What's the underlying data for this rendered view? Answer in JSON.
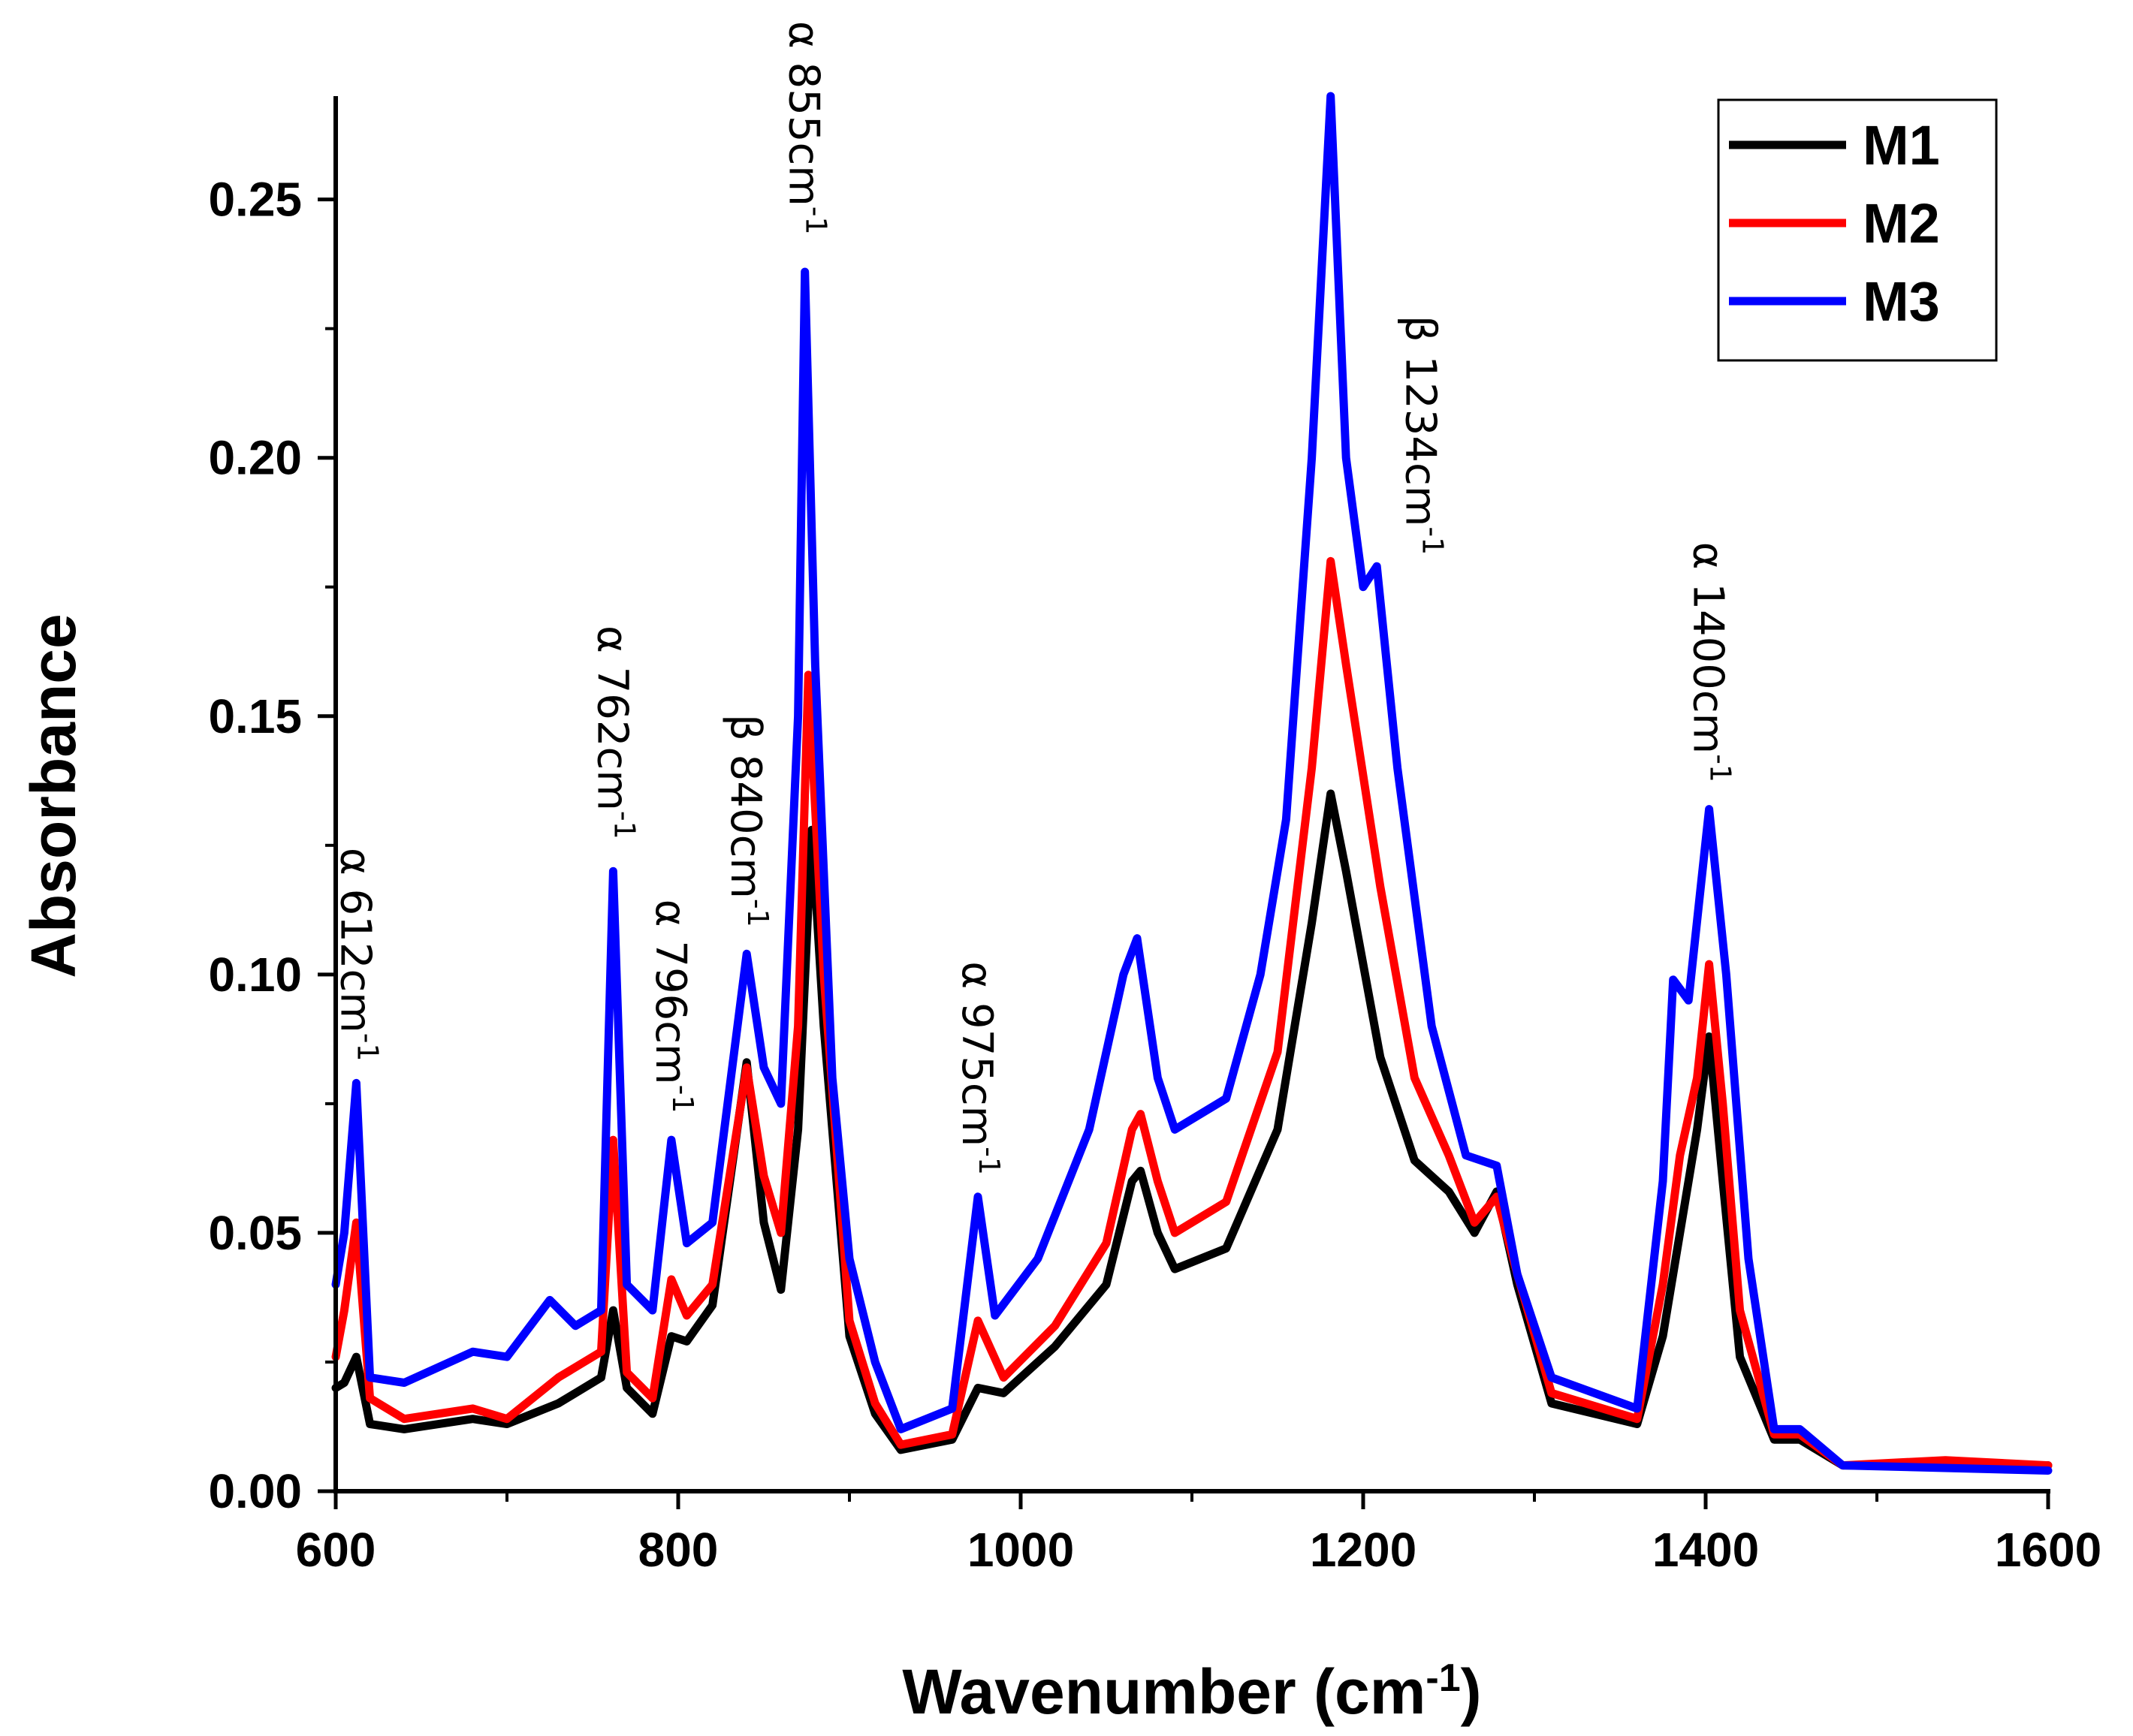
{
  "chart_data": {
    "type": "line",
    "xlabel": "Wavenumber (cm",
    "xlabel_sup": "-1",
    "xlabel_close": ")",
    "ylabel": "Absorbance",
    "xlim": [
      600,
      1600
    ],
    "ylim": [
      0,
      0.27
    ],
    "xticks": [
      600,
      800,
      1000,
      1200,
      1400,
      1600
    ],
    "xtick_labels": [
      "600",
      "800",
      "1000",
      "1200",
      "1400",
      "1600"
    ],
    "yticks": [
      0,
      0.05,
      0.1,
      0.15,
      0.2,
      0.25
    ],
    "ytick_labels": [
      "0.00",
      "0.05",
      "0.10",
      "0.15",
      "0.20",
      "0.25"
    ],
    "legend_position": "top-right",
    "series": [
      {
        "name": "M1",
        "color": "#000000",
        "points": [
          [
            600,
            0.02
          ],
          [
            605,
            0.021
          ],
          [
            612,
            0.026
          ],
          [
            620,
            0.013
          ],
          [
            640,
            0.012
          ],
          [
            680,
            0.014
          ],
          [
            700,
            0.013
          ],
          [
            730,
            0.017
          ],
          [
            755,
            0.022
          ],
          [
            762,
            0.035
          ],
          [
            770,
            0.02
          ],
          [
            785,
            0.015
          ],
          [
            796,
            0.03
          ],
          [
            805,
            0.029
          ],
          [
            820,
            0.036
          ],
          [
            840,
            0.083
          ],
          [
            850,
            0.052
          ],
          [
            860,
            0.039
          ],
          [
            870,
            0.07
          ],
          [
            878,
            0.128
          ],
          [
            885,
            0.09
          ],
          [
            900,
            0.03
          ],
          [
            915,
            0.015
          ],
          [
            930,
            0.008
          ],
          [
            960,
            0.01
          ],
          [
            975,
            0.02
          ],
          [
            990,
            0.019
          ],
          [
            1020,
            0.028
          ],
          [
            1050,
            0.04
          ],
          [
            1065,
            0.06
          ],
          [
            1070,
            0.062
          ],
          [
            1080,
            0.05
          ],
          [
            1090,
            0.043
          ],
          [
            1120,
            0.047
          ],
          [
            1150,
            0.07
          ],
          [
            1170,
            0.11
          ],
          [
            1181,
            0.135
          ],
          [
            1190,
            0.12
          ],
          [
            1210,
            0.084
          ],
          [
            1230,
            0.064
          ],
          [
            1250,
            0.058
          ],
          [
            1265,
            0.05
          ],
          [
            1278,
            0.058
          ],
          [
            1290,
            0.04
          ],
          [
            1310,
            0.017
          ],
          [
            1360,
            0.013
          ],
          [
            1375,
            0.03
          ],
          [
            1395,
            0.07
          ],
          [
            1402,
            0.088
          ],
          [
            1410,
            0.06
          ],
          [
            1420,
            0.026
          ],
          [
            1440,
            0.01
          ],
          [
            1455,
            0.01
          ],
          [
            1480,
            0.005
          ],
          [
            1600,
            0.005
          ]
        ]
      },
      {
        "name": "M2",
        "color": "#ff0000",
        "points": [
          [
            600,
            0.026
          ],
          [
            605,
            0.035
          ],
          [
            612,
            0.052
          ],
          [
            620,
            0.018
          ],
          [
            640,
            0.014
          ],
          [
            680,
            0.016
          ],
          [
            700,
            0.014
          ],
          [
            730,
            0.022
          ],
          [
            755,
            0.027
          ],
          [
            762,
            0.068
          ],
          [
            770,
            0.023
          ],
          [
            785,
            0.018
          ],
          [
            796,
            0.041
          ],
          [
            805,
            0.034
          ],
          [
            820,
            0.04
          ],
          [
            840,
            0.082
          ],
          [
            850,
            0.061
          ],
          [
            860,
            0.05
          ],
          [
            870,
            0.09
          ],
          [
            876,
            0.158
          ],
          [
            885,
            0.1
          ],
          [
            900,
            0.033
          ],
          [
            915,
            0.017
          ],
          [
            930,
            0.009
          ],
          [
            960,
            0.011
          ],
          [
            975,
            0.033
          ],
          [
            990,
            0.022
          ],
          [
            1020,
            0.032
          ],
          [
            1050,
            0.048
          ],
          [
            1065,
            0.07
          ],
          [
            1070,
            0.073
          ],
          [
            1080,
            0.06
          ],
          [
            1090,
            0.05
          ],
          [
            1120,
            0.056
          ],
          [
            1150,
            0.085
          ],
          [
            1170,
            0.14
          ],
          [
            1181,
            0.18
          ],
          [
            1190,
            0.16
          ],
          [
            1210,
            0.117
          ],
          [
            1230,
            0.08
          ],
          [
            1250,
            0.065
          ],
          [
            1265,
            0.052
          ],
          [
            1278,
            0.057
          ],
          [
            1290,
            0.042
          ],
          [
            1310,
            0.019
          ],
          [
            1360,
            0.014
          ],
          [
            1375,
            0.04
          ],
          [
            1385,
            0.065
          ],
          [
            1395,
            0.08
          ],
          [
            1402,
            0.102
          ],
          [
            1410,
            0.075
          ],
          [
            1420,
            0.035
          ],
          [
            1440,
            0.011
          ],
          [
            1455,
            0.011
          ],
          [
            1480,
            0.005
          ],
          [
            1540,
            0.006
          ],
          [
            1600,
            0.005
          ]
        ]
      },
      {
        "name": "M3",
        "color": "#0000ff",
        "points": [
          [
            600,
            0.04
          ],
          [
            605,
            0.05
          ],
          [
            612,
            0.079
          ],
          [
            620,
            0.022
          ],
          [
            640,
            0.021
          ],
          [
            680,
            0.027
          ],
          [
            700,
            0.026
          ],
          [
            725,
            0.037
          ],
          [
            740,
            0.032
          ],
          [
            755,
            0.035
          ],
          [
            762,
            0.12
          ],
          [
            770,
            0.04
          ],
          [
            785,
            0.035
          ],
          [
            796,
            0.068
          ],
          [
            805,
            0.048
          ],
          [
            820,
            0.052
          ],
          [
            840,
            0.104
          ],
          [
            850,
            0.082
          ],
          [
            860,
            0.075
          ],
          [
            870,
            0.15
          ],
          [
            874,
            0.236
          ],
          [
            880,
            0.16
          ],
          [
            890,
            0.08
          ],
          [
            900,
            0.045
          ],
          [
            915,
            0.025
          ],
          [
            930,
            0.012
          ],
          [
            960,
            0.016
          ],
          [
            975,
            0.057
          ],
          [
            985,
            0.034
          ],
          [
            1010,
            0.045
          ],
          [
            1040,
            0.07
          ],
          [
            1060,
            0.1
          ],
          [
            1068,
            0.107
          ],
          [
            1080,
            0.08
          ],
          [
            1090,
            0.07
          ],
          [
            1120,
            0.076
          ],
          [
            1140,
            0.1
          ],
          [
            1155,
            0.13
          ],
          [
            1170,
            0.2
          ],
          [
            1181,
            0.27
          ],
          [
            1190,
            0.2
          ],
          [
            1200,
            0.175
          ],
          [
            1208,
            0.179
          ],
          [
            1220,
            0.14
          ],
          [
            1240,
            0.09
          ],
          [
            1260,
            0.065
          ],
          [
            1278,
            0.063
          ],
          [
            1290,
            0.042
          ],
          [
            1310,
            0.022
          ],
          [
            1360,
            0.016
          ],
          [
            1375,
            0.06
          ],
          [
            1381,
            0.099
          ],
          [
            1390,
            0.095
          ],
          [
            1402,
            0.132
          ],
          [
            1412,
            0.1
          ],
          [
            1425,
            0.045
          ],
          [
            1440,
            0.012
          ],
          [
            1455,
            0.012
          ],
          [
            1480,
            0.005
          ],
          [
            1600,
            0.004
          ]
        ]
      }
    ],
    "annotations": [
      {
        "greek": "α",
        "value": "612cm",
        "sup": "-1",
        "at": [
          612,
          0.082
        ]
      },
      {
        "greek": "α",
        "value": "762cm",
        "sup": "-1",
        "at": [
          762,
          0.125
        ]
      },
      {
        "greek": "α",
        "value": "796cm",
        "sup": "-1",
        "at": [
          796,
          0.072
        ]
      },
      {
        "greek": "β",
        "value": "840cm",
        "sup": "-1",
        "at": [
          840,
          0.108
        ]
      },
      {
        "greek": "α",
        "value": "855cm",
        "sup": "-1",
        "at": [
          874,
          0.242
        ]
      },
      {
        "greek": "α",
        "value": "975cm",
        "sup": "-1",
        "at": [
          975,
          0.06
        ]
      },
      {
        "greek": "β",
        "value": "1234cm",
        "sup": "-1",
        "at": [
          1234,
          0.18
        ]
      },
      {
        "greek": "α",
        "value": "1400cm",
        "sup": "-1",
        "at": [
          1402,
          0.136
        ]
      }
    ]
  }
}
